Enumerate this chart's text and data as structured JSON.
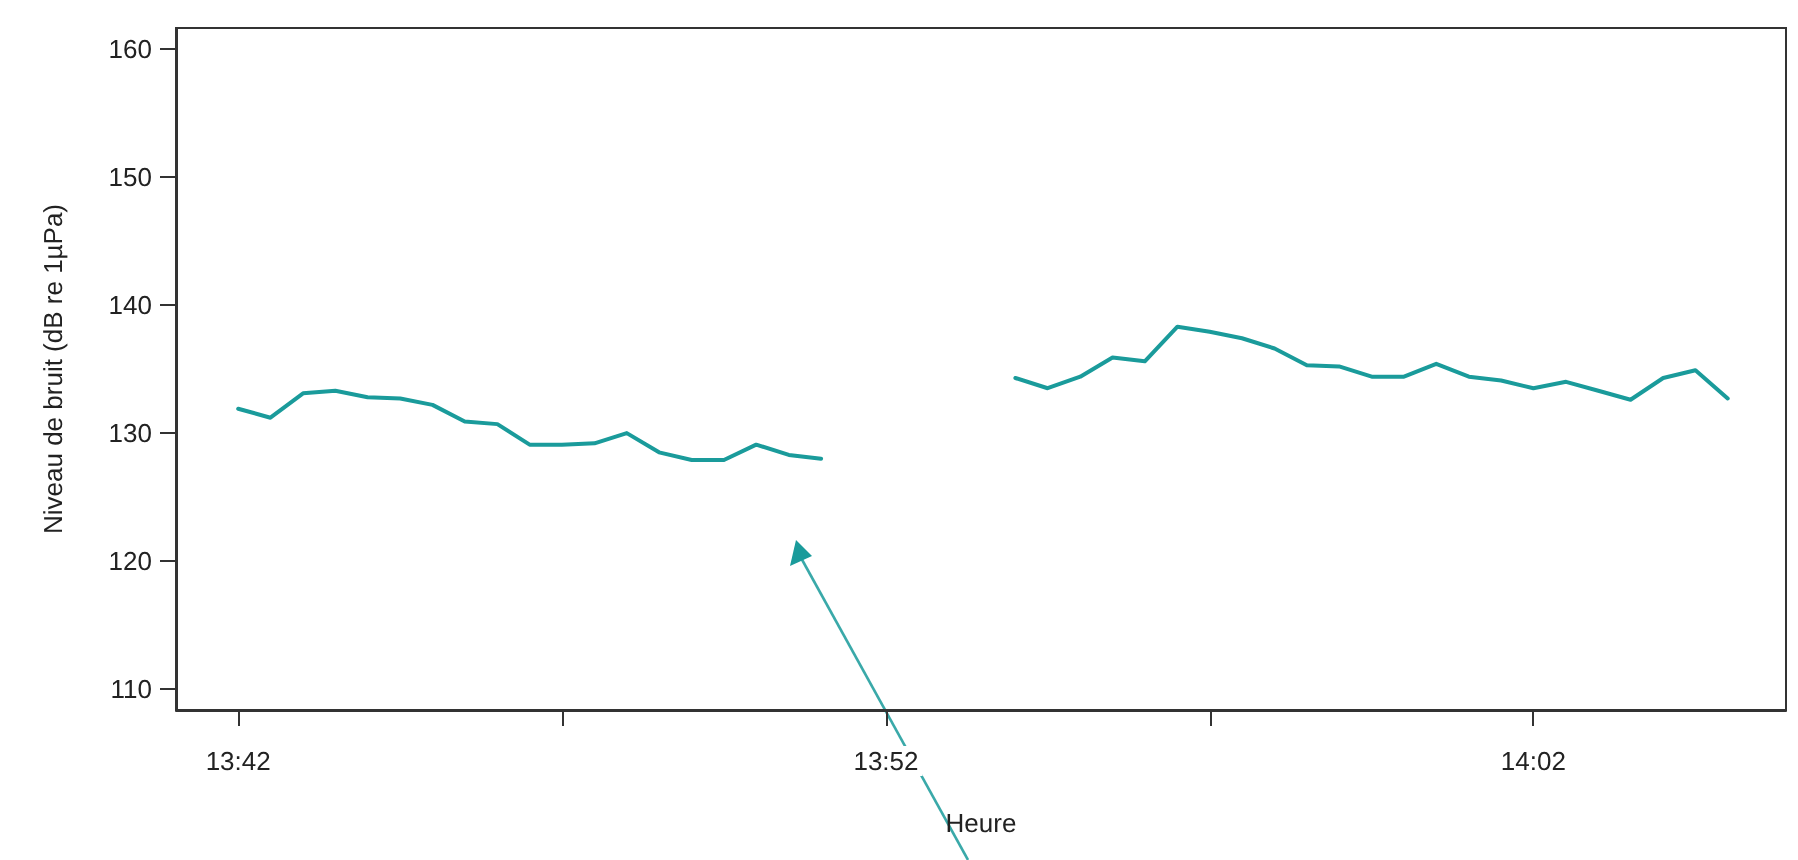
{
  "chart_data": {
    "type": "line",
    "xlabel": "Heure",
    "ylabel": "Niveau de bruit (dB re 1µPa)",
    "x": [
      13.7,
      13.7083,
      13.7167,
      13.725,
      13.7333,
      13.7417,
      13.75,
      13.7583,
      13.7667,
      13.775,
      13.7833,
      13.7917,
      13.8,
      13.8083,
      13.8167,
      13.825,
      13.8333,
      13.8417,
      13.85,
      13.8583,
      13.8667,
      13.875,
      13.8833,
      13.8917,
      13.9,
      13.9083,
      13.9167,
      13.925,
      13.9333,
      13.9417,
      13.95,
      13.9583,
      13.9667,
      13.975,
      13.9833,
      13.9917,
      14.0,
      14.0083,
      14.0167,
      14.025,
      14.0333,
      14.0417,
      14.05,
      14.0583,
      14.0667,
      14.075,
      14.0833
    ],
    "series": [
      {
        "color": "#1a9b9b",
        "values": [
          131.9,
          131.2,
          133.1,
          133.3,
          132.8,
          132.7,
          132.2,
          130.9,
          130.7,
          129.1,
          129.1,
          129.2,
          130.0,
          128.5,
          127.9,
          127.9,
          129.1,
          128.3,
          128.0,
          null,
          null,
          null,
          null,
          null,
          134.3,
          133.5,
          134.4,
          135.9,
          135.6,
          138.3,
          137.9,
          137.4,
          136.6,
          135.3,
          135.2,
          134.4,
          134.4,
          135.4,
          134.4,
          134.1,
          133.5,
          134.0,
          133.3,
          132.6,
          134.3,
          134.9,
          132.7
        ]
      }
    ],
    "xlim": [
      13.684,
      14.0983
    ],
    "xticks": [
      {
        "value": 13.7,
        "label": "13:42"
      },
      {
        "value": 13.7833,
        "label": null
      },
      {
        "value": 13.8667,
        "label": "13:52"
      },
      {
        "value": 13.95,
        "label": null
      },
      {
        "value": 14.0333,
        "label": "14:02"
      }
    ],
    "ylim": [
      108.4,
      161.6
    ],
    "yticks": [
      110,
      120,
      130,
      140,
      150,
      160
    ],
    "grid": false,
    "legend": false,
    "marker": "none",
    "line_style": "solid"
  }
}
